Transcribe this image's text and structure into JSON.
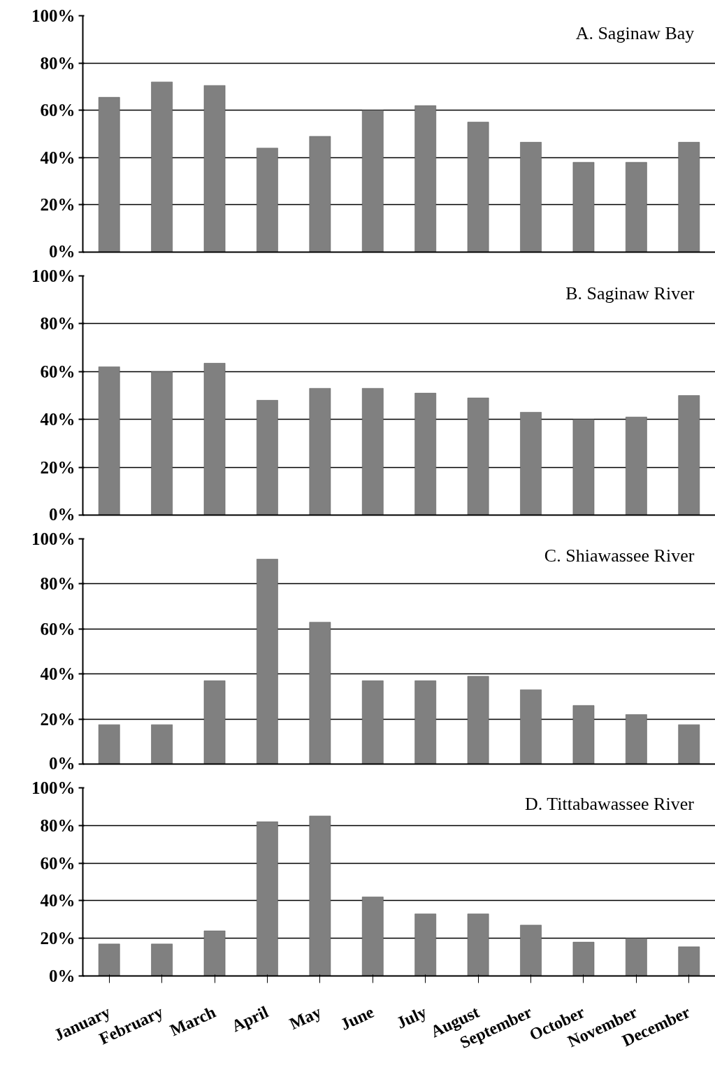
{
  "chart_data": [
    {
      "type": "bar",
      "title": "A. Saginaw Bay",
      "categories": [
        null,
        null,
        null,
        null,
        null,
        null,
        null,
        null,
        null,
        null,
        null,
        null
      ],
      "values": [
        65.5,
        72,
        70.5,
        44,
        49,
        60,
        62,
        55,
        46.5,
        38,
        38,
        46.5
      ],
      "color": "#808080",
      "ylim": [
        0,
        100
      ],
      "yticks": [
        {
          "value": 0,
          "label": "0%"
        },
        {
          "value": 20,
          "label": "20%"
        },
        {
          "value": 40,
          "label": "40%"
        },
        {
          "value": 60,
          "label": "60%"
        },
        {
          "value": 80,
          "label": "80%"
        },
        {
          "value": 100,
          "label": "100%"
        }
      ],
      "grid": "y",
      "tick_labels": "y"
    },
    {
      "type": "bar",
      "title": "B. Saginaw River",
      "categories": [
        null,
        null,
        null,
        null,
        null,
        null,
        null,
        null,
        null,
        null,
        null,
        null
      ],
      "values": [
        62,
        60,
        63.5,
        48,
        53,
        53,
        51,
        49,
        43,
        40,
        41,
        50
      ],
      "color": "#808080",
      "ylim": [
        0,
        100
      ],
      "yticks": [
        {
          "value": 0,
          "label": "0%"
        },
        {
          "value": 20,
          "label": "20%"
        },
        {
          "value": 40,
          "label": "40%"
        },
        {
          "value": 60,
          "label": "60%"
        },
        {
          "value": 80,
          "label": "80%"
        },
        {
          "value": 100,
          "label": "100%"
        }
      ],
      "grid": "y",
      "tick_labels": "y"
    },
    {
      "type": "bar",
      "title": "C. Shiawassee River",
      "categories": [
        null,
        null,
        null,
        null,
        null,
        null,
        null,
        null,
        null,
        null,
        null,
        null
      ],
      "values": [
        17.5,
        17.5,
        37,
        91,
        63,
        37,
        37,
        39,
        33,
        26,
        22,
        17.5
      ],
      "color": "#808080",
      "ylim": [
        0,
        100
      ],
      "yticks": [
        {
          "value": 0,
          "label": "0%"
        },
        {
          "value": 20,
          "label": "20%"
        },
        {
          "value": 40,
          "label": "40%"
        },
        {
          "value": 60,
          "label": "60%"
        },
        {
          "value": 80,
          "label": "80%"
        },
        {
          "value": 100,
          "label": "100%"
        }
      ],
      "grid": "y",
      "tick_labels": "y"
    },
    {
      "type": "bar",
      "title": "D. Tittabawassee River",
      "categories": [
        "January",
        "February",
        "March",
        "April",
        "May",
        "June",
        "July",
        "August",
        "September",
        "October",
        "November",
        "December"
      ],
      "values": [
        17,
        17,
        24,
        82,
        85,
        42,
        33,
        33,
        27,
        18,
        20,
        15.5
      ],
      "color": "#808080",
      "ylim": [
        0,
        100
      ],
      "yticks": [
        {
          "value": 0,
          "label": "0%"
        },
        {
          "value": 20,
          "label": "20%"
        },
        {
          "value": 40,
          "label": "40%"
        },
        {
          "value": 60,
          "label": "60%"
        },
        {
          "value": 80,
          "label": "80%"
        },
        {
          "value": 100,
          "label": "100%"
        }
      ],
      "grid": "y"
    }
  ]
}
